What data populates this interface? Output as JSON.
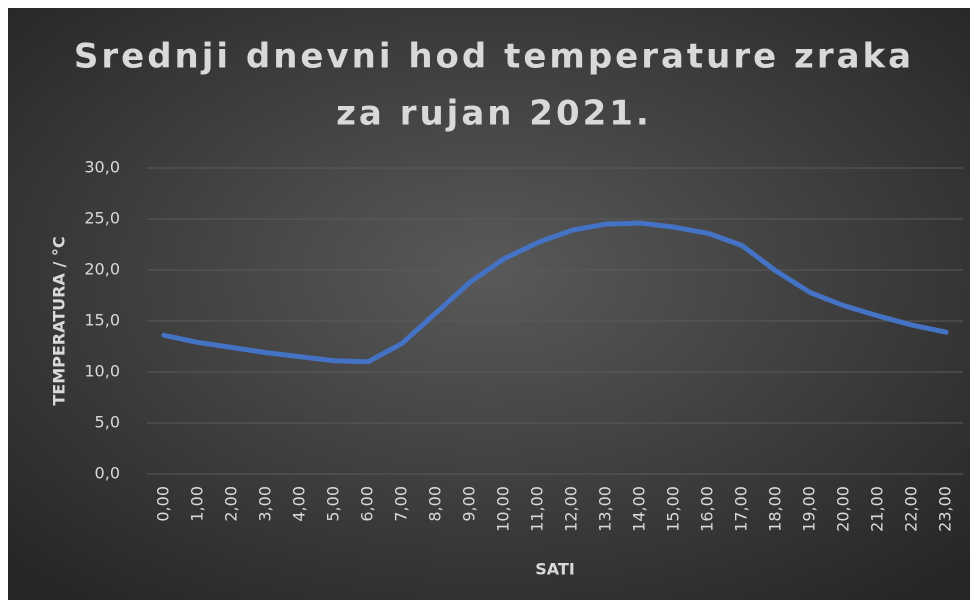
{
  "chart_data": {
    "type": "line",
    "title": [
      "Srednji dnevni hod temperature zraka",
      "za rujan 2021."
    ],
    "x_label": "SATI",
    "y_label": "TEMPERATURA / °C",
    "categories": [
      "0,00",
      "1,00",
      "2,00",
      "3,00",
      "4,00",
      "5,00",
      "6,00",
      "7,00",
      "8,00",
      "9,00",
      "10,00",
      "11,00",
      "12,00",
      "13,00",
      "14,00",
      "15,00",
      "16,00",
      "17,00",
      "18,00",
      "19,00",
      "20,00",
      "21,00",
      "22,00",
      "23,00"
    ],
    "series": [
      {
        "name": "Temperatura",
        "color": "#4472c4",
        "values": [
          13.6,
          12.9,
          12.4,
          11.9,
          11.5,
          11.1,
          11.0,
          12.8,
          15.8,
          18.8,
          21.1,
          22.7,
          23.9,
          24.5,
          24.6,
          24.2,
          23.6,
          22.4,
          19.9,
          17.8,
          16.5,
          15.5,
          14.6,
          13.9
        ]
      }
    ],
    "ylim": [
      0,
      30
    ],
    "yticks": [
      {
        "value": 0,
        "label": "0,0"
      },
      {
        "value": 5,
        "label": "5,0"
      },
      {
        "value": 10,
        "label": "10,0"
      },
      {
        "value": 15,
        "label": "15,0"
      },
      {
        "value": 20,
        "label": "20,0"
      },
      {
        "value": 25,
        "label": "25,0"
      },
      {
        "value": 30,
        "label": "30,0"
      }
    ],
    "grid": true
  }
}
